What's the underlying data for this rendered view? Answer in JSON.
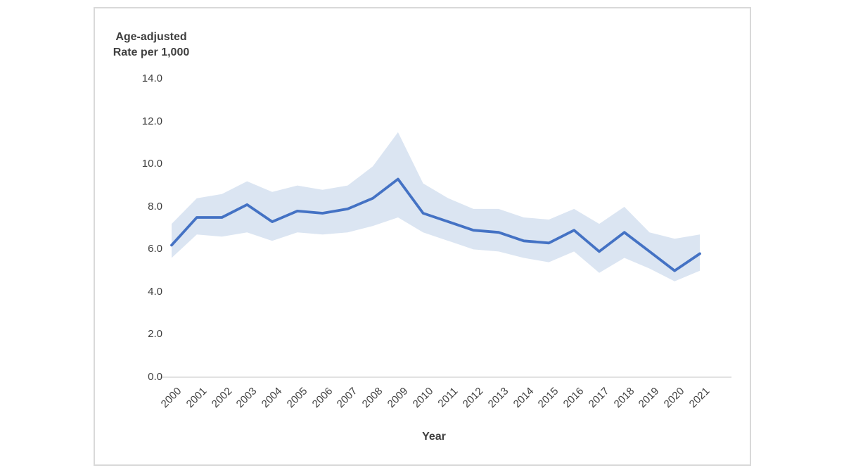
{
  "figure": {
    "y_axis_title": "Age-adjusted\nRate per 1,000",
    "x_axis_title": "Year",
    "y_tick_labels": [
      "14.0",
      "12.0",
      "10.0",
      "8.0",
      "6.0",
      "4.0",
      "2.0",
      "0.0"
    ],
    "colors": {
      "line": "#4472c4",
      "band": "#dbe5f2",
      "axis_line": "#d9d9d9",
      "text": "#404040",
      "card_border": "#d9d9d9"
    }
  },
  "chart_data": {
    "type": "line",
    "title": "",
    "xlabel": "Year",
    "ylabel": "Age-adjusted Rate per 1,000",
    "ylim": [
      0,
      14
    ],
    "y_tick_step": 2,
    "grid": false,
    "legend": "none",
    "band_style": "shaded confidence interval around line",
    "categories": [
      "2000",
      "2001",
      "2002",
      "2003",
      "2004",
      "2005",
      "2006",
      "2007",
      "2008",
      "2009",
      "2010",
      "2011",
      "2012",
      "2013",
      "2014",
      "2015",
      "2016",
      "2017",
      "2018",
      "2019",
      "2020",
      "2021"
    ],
    "series": [
      {
        "name": "Age-adjusted rate",
        "values": [
          6.2,
          7.5,
          7.5,
          8.1,
          7.3,
          7.8,
          7.7,
          7.9,
          8.4,
          9.3,
          7.7,
          7.3,
          6.9,
          6.8,
          6.4,
          6.3,
          6.9,
          5.9,
          6.8,
          5.9,
          5.0,
          5.8
        ]
      },
      {
        "name": "Confidence interval lower bound",
        "values": [
          5.6,
          6.7,
          6.6,
          6.8,
          6.4,
          6.8,
          6.7,
          6.8,
          7.1,
          7.5,
          6.8,
          6.4,
          6.0,
          5.9,
          5.6,
          5.4,
          5.9,
          4.9,
          5.6,
          5.1,
          4.5,
          5.0
        ]
      },
      {
        "name": "Confidence interval upper bound",
        "values": [
          7.2,
          8.4,
          8.6,
          9.2,
          8.7,
          9.0,
          8.8,
          9.0,
          9.9,
          11.5,
          9.1,
          8.4,
          7.9,
          7.9,
          7.5,
          7.4,
          7.9,
          7.2,
          8.0,
          6.8,
          6.5,
          6.7
        ]
      }
    ]
  }
}
